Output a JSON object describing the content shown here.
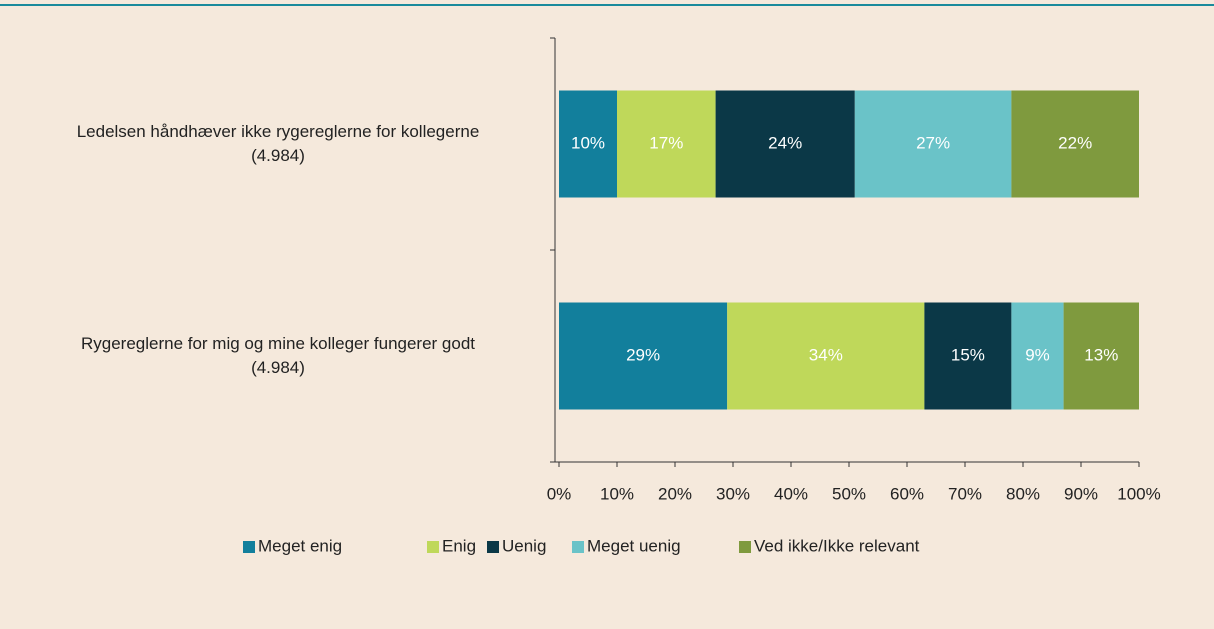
{
  "chart_data": {
    "type": "stacked-bar-horizontal",
    "categories": [
      "Ledelsen håndhæver ikke rygereglerne for kollegerne\n(4.984)",
      "Rygereglerne for mig og mine kolleger fungerer godt\n(4.984)"
    ],
    "series": [
      {
        "name": "Meget enig",
        "color": "#127f9c",
        "values": [
          10,
          29
        ],
        "value_labels": [
          "10%",
          "29%"
        ]
      },
      {
        "name": "Enig",
        "color": "#bfd85a",
        "values": [
          17,
          34
        ],
        "value_labels": [
          "17%",
          "34%"
        ]
      },
      {
        "name": "Uenig",
        "color": "#0b3847",
        "values": [
          24,
          15
        ],
        "value_labels": [
          "24%",
          "15%"
        ]
      },
      {
        "name": "Meget uenig",
        "color": "#6ac3c8",
        "values": [
          27,
          9
        ],
        "value_labels": [
          "27%",
          "9%"
        ]
      },
      {
        "name": "Ved ikke/Ikke relevant",
        "color": "#7f9a3e",
        "values": [
          22,
          13
        ],
        "value_labels": [
          "22%",
          "13%"
        ]
      }
    ],
    "xlim": [
      0,
      100
    ],
    "xticks": [
      {
        "value": 0,
        "label": "0%"
      },
      {
        "value": 10,
        "label": "10%"
      },
      {
        "value": 20,
        "label": "20%"
      },
      {
        "value": 30,
        "label": "30%"
      },
      {
        "value": 40,
        "label": "40%"
      },
      {
        "value": 50,
        "label": "50%"
      },
      {
        "value": 60,
        "label": "60%"
      },
      {
        "value": 70,
        "label": "70%"
      },
      {
        "value": 80,
        "label": "80%"
      },
      {
        "value": 90,
        "label": "90%"
      },
      {
        "value": 100,
        "label": "100%"
      }
    ],
    "legend": "bottom"
  }
}
